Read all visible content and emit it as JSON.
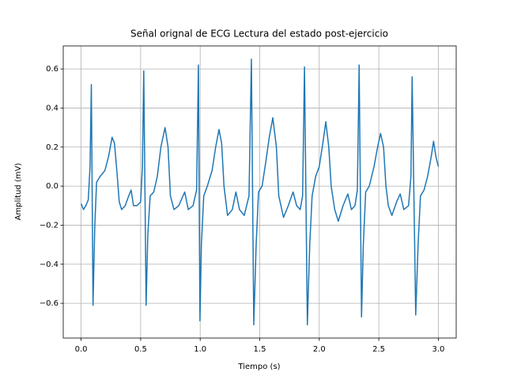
{
  "chart_data": {
    "type": "line",
    "title": "Señal orignal de ECG Lectura del estado post-ejercicio",
    "x_label": "Tiempo (s)",
    "y_label": "Amplitud (mV)",
    "color": "#1f77b4",
    "grid": true,
    "xlim": [
      -0.15,
      3.15
    ],
    "ylim": [
      -0.778,
      0.718
    ],
    "xticks": [
      {
        "value": 0,
        "label": "0.0"
      },
      0.5,
      {
        "value": 1,
        "label": "1.0"
      },
      1.5,
      {
        "value": 2,
        "label": "2.0"
      },
      2.5,
      {
        "value": 3,
        "label": "3.0"
      }
    ],
    "yticks": [
      {
        "value": -0.6,
        "label": "−0.6"
      },
      {
        "value": -0.4,
        "label": "−0.4"
      },
      {
        "value": -0.2,
        "label": "−0.2"
      },
      {
        "value": 0,
        "label": "0.0"
      },
      0.2,
      0.4,
      0.6
    ],
    "x": [
      0,
      0.02,
      0.04,
      0.06,
      0.075,
      0.086,
      0.1,
      0.115,
      0.13,
      0.16,
      0.2,
      0.23,
      0.26,
      0.28,
      0.3,
      0.32,
      0.34,
      0.37,
      0.4,
      0.42,
      0.44,
      0.47,
      0.5,
      0.515,
      0.526,
      0.546,
      0.56,
      0.58,
      0.61,
      0.64,
      0.67,
      0.705,
      0.73,
      0.75,
      0.78,
      0.82,
      0.87,
      0.9,
      0.94,
      0.97,
      0.985,
      0.998,
      1.01,
      1.03,
      1.06,
      1.1,
      1.13,
      1.158,
      1.18,
      1.2,
      1.23,
      1.27,
      1.3,
      1.33,
      1.37,
      1.41,
      1.43,
      1.45,
      1.47,
      1.49,
      1.52,
      1.55,
      1.58,
      1.61,
      1.64,
      1.66,
      1.7,
      1.74,
      1.78,
      1.81,
      1.84,
      1.86,
      1.876,
      1.9,
      1.92,
      1.94,
      1.97,
      2.0,
      2.03,
      2.055,
      2.08,
      2.1,
      2.13,
      2.16,
      2.2,
      2.24,
      2.27,
      2.3,
      2.32,
      2.335,
      2.355,
      2.37,
      2.39,
      2.42,
      2.46,
      2.49,
      2.515,
      2.54,
      2.56,
      2.58,
      2.61,
      2.65,
      2.68,
      2.71,
      2.75,
      2.77,
      2.78,
      2.81,
      2.83,
      2.85,
      2.88,
      2.91,
      2.94,
      2.96,
      2.98,
      3.0
    ],
    "values": [
      -0.09,
      -0.12,
      -0.1,
      -0.07,
      0.1,
      0.52,
      -0.61,
      -0.2,
      0.02,
      0.05,
      0.08,
      0.15,
      0.25,
      0.22,
      0.08,
      -0.08,
      -0.12,
      -0.1,
      -0.05,
      -0.02,
      -0.1,
      -0.1,
      -0.08,
      0.1,
      0.59,
      -0.61,
      -0.25,
      -0.05,
      -0.03,
      0.05,
      0.2,
      0.3,
      0.2,
      -0.05,
      -0.12,
      -0.1,
      -0.03,
      -0.12,
      -0.1,
      -0.02,
      0.62,
      -0.69,
      -0.3,
      -0.05,
      0.0,
      0.08,
      0.2,
      0.29,
      0.22,
      0.0,
      -0.15,
      -0.12,
      -0.03,
      -0.12,
      -0.15,
      -0.05,
      0.65,
      -0.71,
      -0.3,
      -0.03,
      0.0,
      0.12,
      0.25,
      0.35,
      0.2,
      -0.05,
      -0.16,
      -0.1,
      -0.03,
      -0.1,
      -0.12,
      -0.05,
      0.61,
      -0.71,
      -0.3,
      -0.05,
      0.05,
      0.1,
      0.22,
      0.33,
      0.2,
      0.0,
      -0.12,
      -0.18,
      -0.1,
      -0.04,
      -0.12,
      -0.1,
      -0.02,
      0.62,
      -0.67,
      -0.3,
      -0.03,
      0.0,
      0.1,
      0.2,
      0.27,
      0.2,
      0.0,
      -0.1,
      -0.15,
      -0.08,
      -0.04,
      -0.12,
      -0.1,
      0.05,
      0.56,
      -0.66,
      -0.3,
      -0.05,
      -0.02,
      0.05,
      0.15,
      0.23,
      0.15,
      0.1
    ]
  }
}
